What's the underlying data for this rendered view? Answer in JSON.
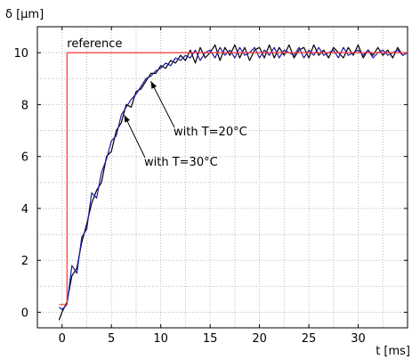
{
  "chart_data": {
    "type": "line",
    "xlabel": "t [ms]",
    "ylabel": "δ [µm]",
    "xlim": [
      -2.5,
      35
    ],
    "ylim": [
      -0.6,
      11
    ],
    "xticks": [
      0,
      5,
      10,
      15,
      20,
      25,
      30
    ],
    "yticks": [
      0,
      2,
      4,
      6,
      8,
      10
    ],
    "grid": true,
    "annotations": [
      {
        "text": "reference",
        "at": [
          0.5,
          10
        ],
        "series": "reference"
      },
      {
        "text": "with T=20°C",
        "at": [
          9,
          8.9
        ],
        "series": "with T=20°C"
      },
      {
        "text": "with T=30°C",
        "at": [
          6.3,
          7.6
        ],
        "series": "with T=30°C"
      }
    ],
    "series": [
      {
        "name": "reference",
        "color": "#ff3333",
        "x": [
          -0.3,
          0.5,
          0.5,
          35
        ],
        "y": [
          0.3,
          0.3,
          10,
          10
        ]
      },
      {
        "name": "with T=20°C",
        "color": "#1a1aa8",
        "x": [
          -0.3,
          0,
          0.5,
          1,
          1.5,
          2,
          2.5,
          3,
          3.5,
          4,
          4.5,
          5,
          5.5,
          6,
          6.5,
          7,
          7.5,
          8,
          8.5,
          9,
          9.5,
          10,
          10.5,
          11,
          11.5,
          12,
          12.5,
          13,
          13.5,
          14,
          14.5,
          15,
          15.5,
          16,
          16.5,
          17,
          17.5,
          18,
          18.5,
          19,
          19.5,
          20,
          20.5,
          21,
          21.5,
          22,
          22.5,
          23,
          23.5,
          24,
          24.5,
          25,
          25.5,
          26,
          26.5,
          27,
          27.5,
          28,
          28.5,
          29,
          29.5,
          30,
          30.5,
          31,
          31.5,
          32,
          32.5,
          33,
          33.5,
          34,
          34.5,
          35
        ],
        "y": [
          0.2,
          0.1,
          0.3,
          1.8,
          1.5,
          2.9,
          3.2,
          4.6,
          4.4,
          5.4,
          5.9,
          6.6,
          6.8,
          7.6,
          7.9,
          8.2,
          8.4,
          8.7,
          9.0,
          9.1,
          9.3,
          9.4,
          9.6,
          9.5,
          9.8,
          9.7,
          9.9,
          9.8,
          10.1,
          9.7,
          10.0,
          10.1,
          9.8,
          10.2,
          9.9,
          10.1,
          9.8,
          10.2,
          9.9,
          10.0,
          10.2,
          9.8,
          10.1,
          9.9,
          10.2,
          9.8,
          10.1,
          10.0,
          9.9,
          10.2,
          9.8,
          10.1,
          9.9,
          10.2,
          9.9,
          10.0,
          10.1,
          9.8,
          10.2,
          9.9,
          10.0,
          10.1,
          9.9,
          10.1,
          9.8,
          10.0,
          10.1,
          9.9,
          10.0,
          10.1,
          9.9,
          10.0
        ]
      },
      {
        "name": "with T=30°C",
        "color": "#000000",
        "x": [
          -0.3,
          0,
          0.5,
          1,
          1.5,
          2,
          2.5,
          3,
          3.5,
          4,
          4.5,
          5,
          5.5,
          6,
          6.5,
          7,
          7.5,
          8,
          8.5,
          9,
          9.5,
          10,
          10.5,
          11,
          11.5,
          12,
          12.5,
          13,
          13.5,
          14,
          14.5,
          15,
          15.5,
          16,
          16.5,
          17,
          17.5,
          18,
          18.5,
          19,
          19.5,
          20,
          20.5,
          21,
          21.5,
          22,
          22.5,
          23,
          23.5,
          24,
          24.5,
          25,
          25.5,
          26,
          26.5,
          27,
          27.5,
          28,
          28.5,
          29,
          29.5,
          30,
          30.5,
          31,
          31.5,
          32,
          32.5,
          33,
          33.5,
          34,
          34.5,
          35
        ],
        "y": [
          -0.3,
          0.0,
          0.4,
          1.4,
          1.7,
          2.7,
          3.4,
          4.2,
          4.7,
          5.0,
          6.0,
          6.2,
          7.0,
          7.3,
          8.0,
          7.9,
          8.5,
          8.6,
          8.9,
          9.2,
          9.2,
          9.5,
          9.4,
          9.7,
          9.6,
          9.9,
          9.7,
          10.1,
          9.6,
          10.2,
          9.8,
          10.0,
          10.3,
          9.7,
          10.2,
          9.9,
          10.3,
          9.8,
          10.2,
          9.7,
          10.1,
          10.2,
          9.8,
          10.3,
          9.8,
          10.2,
          9.9,
          10.3,
          9.8,
          10.1,
          10.2,
          9.8,
          10.3,
          9.9,
          10.1,
          9.8,
          10.2,
          10.0,
          9.8,
          10.2,
          9.9,
          10.3,
          9.8,
          10.1,
          9.9,
          10.2,
          9.9,
          10.1,
          9.8,
          10.2,
          9.9,
          10.0
        ]
      }
    ]
  }
}
